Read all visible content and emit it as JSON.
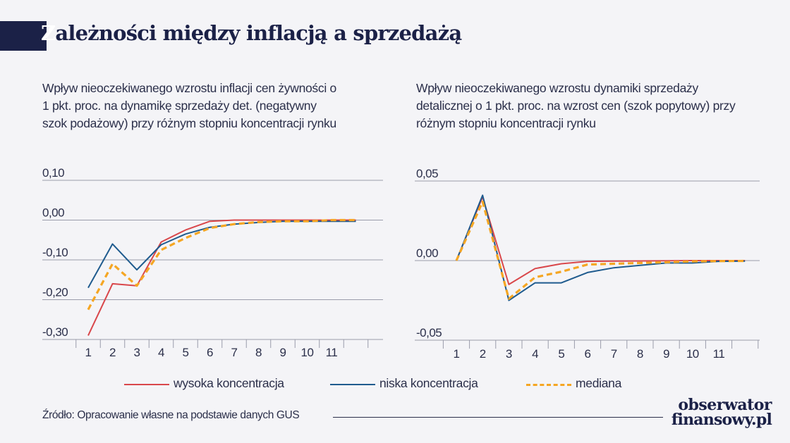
{
  "title": "Zależności między inflacją a sprzedażą",
  "title_first": "Z",
  "title_rest": "ależności między inflacją a sprzedażą",
  "colors": {
    "wysoka": "#d9474b",
    "niska": "#1f5b8e",
    "mediana": "#f5a623",
    "grid": "#9a9caa",
    "navy": "#1b2147"
  },
  "legend": [
    {
      "label": "wysoka koncentracja",
      "color": "#d9474b",
      "style": "solid"
    },
    {
      "label": "niska koncentracja",
      "color": "#1f5b8e",
      "style": "solid"
    },
    {
      "label": "mediana",
      "color": "#f5a623",
      "style": "dashed"
    }
  ],
  "source": "Źródło: Opracowanie własne na podstawie danych GUS",
  "logo": {
    "line1": "obserwator",
    "line2": "finansowy.pl"
  },
  "chart_data": [
    {
      "type": "line",
      "title": "Wpływ nieoczekiwanego wzrostu inflacji cen żywności o 1 pkt. proc. na dynamikę sprzedaży det. (negatywny szok podażowy) przy różnym stopniu koncentracji rynku",
      "x": [
        1,
        2,
        3,
        4,
        5,
        6,
        7,
        8,
        9,
        10,
        11,
        12
      ],
      "x_tick_labels": [
        "1",
        "2",
        "3",
        "4",
        "5",
        "6",
        "7",
        "8",
        "9",
        "10",
        "11"
      ],
      "y_tick_labels": [
        "0,10",
        "0,00",
        "-0,10",
        "-0,20",
        "-0,30"
      ],
      "y_ticks": [
        0.1,
        0.0,
        -0.1,
        -0.2,
        -0.3
      ],
      "ylim": [
        -0.3,
        0.1
      ],
      "grid": true,
      "series": [
        {
          "name": "wysoka koncentracja",
          "values": [
            -0.29,
            -0.16,
            -0.165,
            -0.055,
            -0.025,
            -0.003,
            0.0,
            0.0,
            0.0,
            0.0,
            0.0,
            0.0
          ]
        },
        {
          "name": "niska koncentracja",
          "values": [
            -0.17,
            -0.06,
            -0.125,
            -0.062,
            -0.035,
            -0.018,
            -0.01,
            -0.006,
            -0.003,
            -0.003,
            -0.003,
            -0.003
          ]
        },
        {
          "name": "mediana",
          "values": [
            -0.225,
            -0.11,
            -0.165,
            -0.075,
            -0.045,
            -0.02,
            -0.01,
            -0.005,
            -0.003,
            -0.003,
            0.0,
            0.0
          ]
        }
      ]
    },
    {
      "type": "line",
      "title": "Wpływ nieoczekiwanego wzrostu dynamiki sprzedaży detalicznej o 1 pkt. proc. na wzrost cen (szok popytowy) przy różnym stopniu koncentracji rynku",
      "x": [
        1,
        2,
        3,
        4,
        5,
        6,
        7,
        8,
        9,
        10,
        11,
        12
      ],
      "x_tick_labels": [
        "1",
        "2",
        "3",
        "4",
        "5",
        "6",
        "7",
        "8",
        "9",
        "10",
        "11"
      ],
      "y_tick_labels": [
        "0,05",
        "0,00",
        "-0,05"
      ],
      "y_ticks": [
        0.05,
        0.0,
        -0.05
      ],
      "ylim": [
        -0.05,
        0.05
      ],
      "grid": true,
      "series": [
        {
          "name": "wysoka koncentracja",
          "values": [
            0.0,
            0.04,
            -0.015,
            -0.005,
            -0.002,
            -0.0005,
            -0.0003,
            -0.0002,
            -0.0001,
            0.0,
            0.0,
            0.0
          ]
        },
        {
          "name": "niska koncentracja",
          "values": [
            0.0,
            0.041,
            -0.025,
            -0.014,
            -0.014,
            -0.0075,
            -0.0045,
            -0.003,
            -0.0015,
            -0.0015,
            -0.0005,
            -0.0003
          ]
        },
        {
          "name": "mediana",
          "values": [
            0.0,
            0.037,
            -0.024,
            -0.0105,
            -0.007,
            -0.0025,
            -0.002,
            -0.0015,
            -0.001,
            -0.0005,
            -0.0003,
            -0.0002
          ]
        }
      ]
    }
  ]
}
